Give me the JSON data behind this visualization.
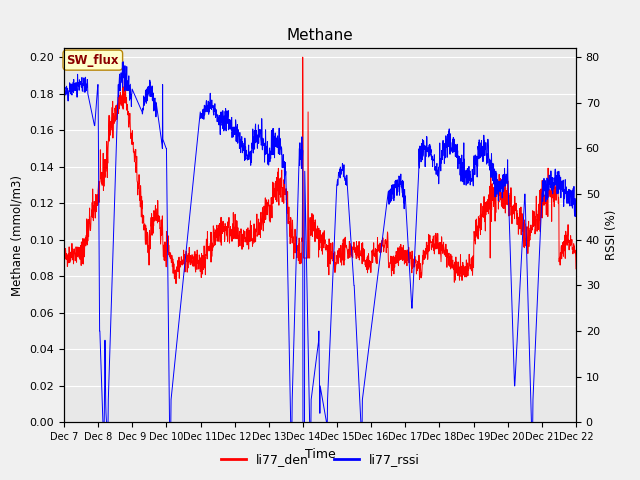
{
  "title": "Methane",
  "ylabel_left": "Methane (mmol/m3)",
  "ylabel_right": "RSSI (%)",
  "xlabel": "Time",
  "ylim_left": [
    0.0,
    0.205
  ],
  "ylim_right": [
    0,
    82
  ],
  "yticks_left": [
    0.0,
    0.02,
    0.04,
    0.06,
    0.08,
    0.1,
    0.12,
    0.14,
    0.16,
    0.18,
    0.2
  ],
  "yticks_right": [
    0,
    10,
    20,
    30,
    40,
    50,
    60,
    70,
    80
  ],
  "fig_bg_color": "#f0f0f0",
  "plot_bg_color": "#e8e8e8",
  "sw_flux_label": "SW_flux",
  "sw_flux_bg": "#ffffcc",
  "sw_flux_border": "#b8860b",
  "sw_flux_text_color": "#8b0000",
  "legend_labels": [
    "li77_den",
    "li77_rssi"
  ],
  "line_colors": [
    "red",
    "blue"
  ],
  "xtick_labels": [
    "Dec 7",
    "Dec 8",
    "Dec 9",
    "Dec 10",
    "Dec 11",
    "Dec 12",
    "Dec 13",
    "Dec 14",
    "Dec 15",
    "Dec 16",
    "Dec 17",
    "Dec 18",
    "Dec 19",
    "Dec 20",
    "Dec 21",
    "Dec 22"
  ],
  "grid_color": "#ffffff",
  "n_points": 2000
}
